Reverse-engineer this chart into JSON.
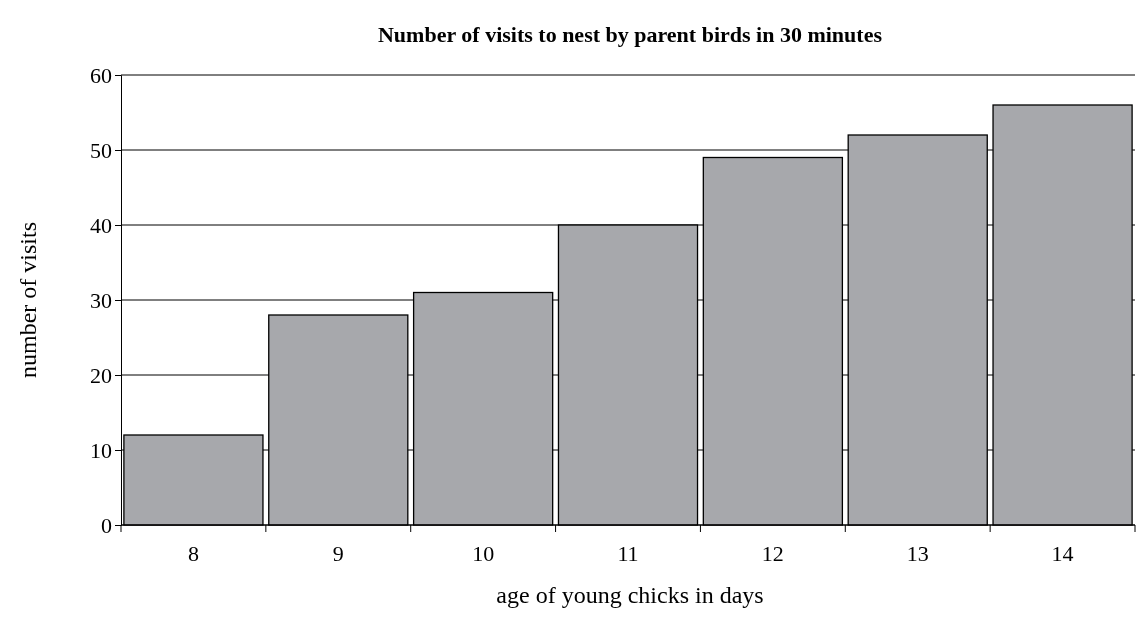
{
  "chart_data": {
    "type": "bar",
    "title": "Number of visits to nest by parent birds in 30 minutes",
    "xlabel": "age of young chicks in days",
    "ylabel": "number of visits",
    "categories": [
      "8",
      "9",
      "10",
      "11",
      "12",
      "13",
      "14"
    ],
    "values": [
      12,
      28,
      31,
      40,
      49,
      52,
      56
    ],
    "color": "#a7a8ac",
    "ylim": [
      0,
      60
    ],
    "yticks": [
      0,
      10,
      20,
      30,
      40,
      50,
      60
    ],
    "grid": "y"
  }
}
